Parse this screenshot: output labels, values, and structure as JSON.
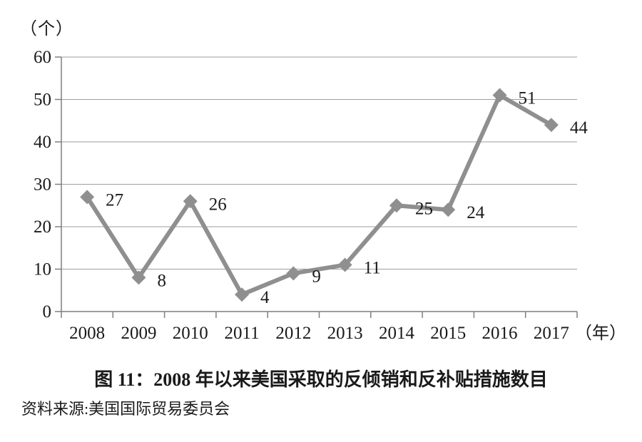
{
  "chart_data": {
    "type": "line",
    "title": "图 11：2008 年以来美国采取的反倾销和反补贴措施数目",
    "source": "资料来源:美国国际贸易委员会",
    "y_unit_label": "（个）",
    "x_unit_label": "（年）",
    "categories": [
      "2008",
      "2009",
      "2010",
      "2011",
      "2012",
      "2013",
      "2014",
      "2015",
      "2016",
      "2017"
    ],
    "values": [
      27,
      8,
      26,
      4,
      9,
      11,
      25,
      24,
      51,
      44
    ],
    "ylim": [
      0,
      60
    ],
    "yticks": [
      0,
      10,
      20,
      30,
      40,
      50,
      60
    ],
    "grid": "horizontal",
    "legend": "none",
    "marker": "diamond",
    "colors": {
      "line": "#8f8f8f",
      "marker": "#8f8f8f",
      "gridline": "#9e9e9e",
      "axis": "#7f7f7f",
      "text": "#1a1a1a"
    }
  }
}
